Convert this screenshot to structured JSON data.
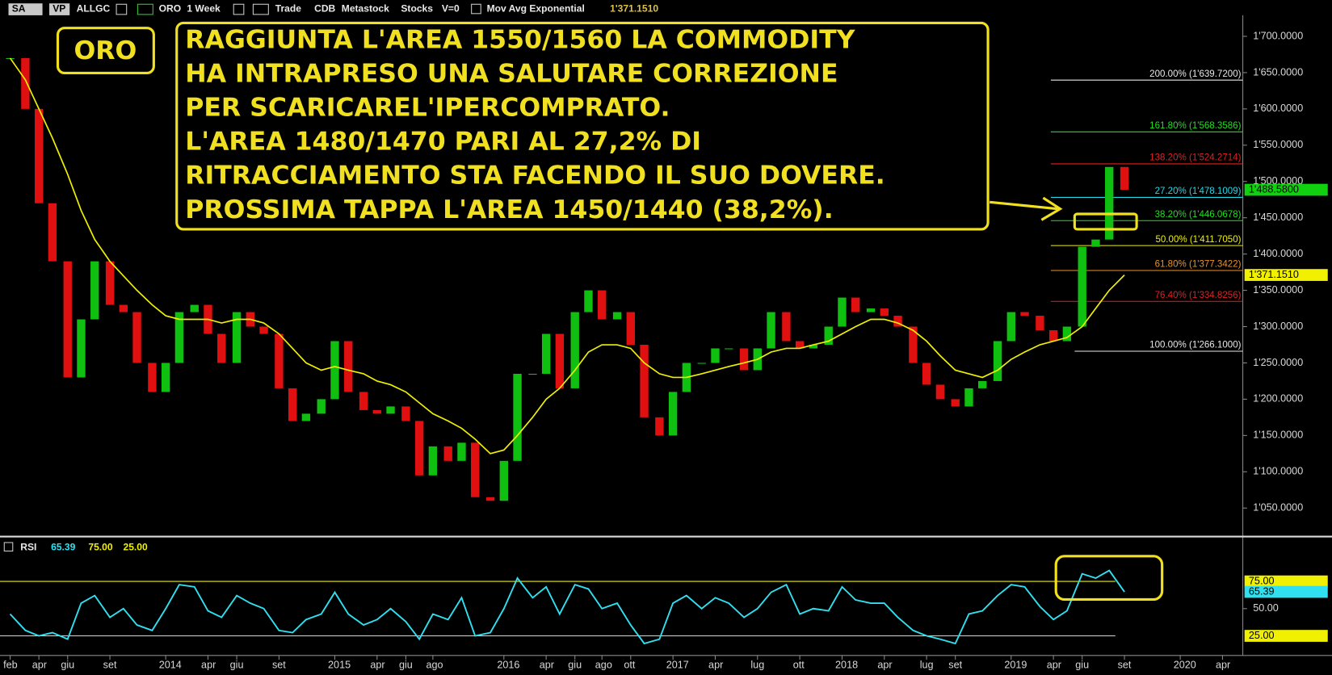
{
  "toolbar": {
    "buttons": [
      "SA",
      "VP"
    ],
    "symbol": "ALLGC",
    "name": "ORO",
    "period": "1 Week",
    "mode": "Trade",
    "source": "CDB",
    "format": "Metastock",
    "market": "Stocks",
    "volume": "V=0"
  },
  "chart_data": [
    {
      "type": "candlestick",
      "title": "ORO",
      "annotation": [
        "RAGGIUNTA L'AREA 1550/1560 LA COMMODITY",
        "HA INTRAPRESO UNA SALUTARE CORREZIONE",
        "PER SCARICAREL'IPERCOMPRATO.",
        "L'AREA 1480/1470 PARI AL 27,2% DI",
        "RITRACCIAMENTO STA FACENDO IL SUO DOVERE.",
        "PROSSIMA TAPPA L'AREA 1450/1440 (38,2%)."
      ],
      "x": [
        2013.08,
        2013.17,
        2013.25,
        2013.33,
        2013.42,
        2013.5,
        2013.58,
        2013.67,
        2013.75,
        2013.83,
        2013.92,
        2014,
        2014.08,
        2014.17,
        2014.25,
        2014.33,
        2014.42,
        2014.5,
        2014.58,
        2014.67,
        2014.75,
        2014.83,
        2014.92,
        2015,
        2015.08,
        2015.17,
        2015.25,
        2015.33,
        2015.42,
        2015.5,
        2015.58,
        2015.67,
        2015.75,
        2015.83,
        2015.92,
        2016,
        2016.08,
        2016.17,
        2016.25,
        2016.33,
        2016.42,
        2016.5,
        2016.58,
        2016.67,
        2016.75,
        2016.83,
        2016.92,
        2017,
        2017.08,
        2017.17,
        2017.25,
        2017.33,
        2017.42,
        2017.5,
        2017.58,
        2017.67,
        2017.75,
        2017.83,
        2017.92,
        2018,
        2018.08,
        2018.17,
        2018.25,
        2018.33,
        2018.42,
        2018.5,
        2018.58,
        2018.67,
        2018.75,
        2018.83,
        2018.92,
        2019,
        2019.08,
        2019.17,
        2019.25,
        2019.33,
        2019.42,
        2019.5,
        2019.58,
        2019.67
      ],
      "values": [
        1670,
        1600,
        1470,
        1390,
        1230,
        1310,
        1390,
        1330,
        1320,
        1250,
        1210,
        1250,
        1320,
        1330,
        1290,
        1250,
        1320,
        1300,
        1290,
        1215,
        1170,
        1180,
        1200,
        1280,
        1210,
        1185,
        1180,
        1190,
        1170,
        1095,
        1135,
        1115,
        1140,
        1065,
        1060,
        1115,
        1235,
        1235,
        1290,
        1215,
        1320,
        1350,
        1310,
        1320,
        1275,
        1175,
        1150,
        1210,
        1250,
        1250,
        1270,
        1270,
        1240,
        1270,
        1320,
        1280,
        1270,
        1275,
        1300,
        1340,
        1320,
        1325,
        1315,
        1300,
        1250,
        1220,
        1200,
        1190,
        1215,
        1225,
        1280,
        1320,
        1315,
        1295,
        1280,
        1300,
        1410,
        1420,
        1520,
        1488.58
      ],
      "up_color": "#10c010",
      "down_color": "#e01010",
      "price_tag": {
        "value": 1488.58,
        "label": "1'488.5800",
        "color": "#10d010"
      },
      "moving_average": {
        "name": "Mov Avg Exponential",
        "color": "#f0f000",
        "values": [
          1670,
          1640,
          1600,
          1560,
          1510,
          1460,
          1420,
          1390,
          1370,
          1350,
          1330,
          1315,
          1310,
          1310,
          1310,
          1305,
          1310,
          1310,
          1305,
          1290,
          1270,
          1250,
          1240,
          1245,
          1240,
          1235,
          1225,
          1220,
          1210,
          1195,
          1180,
          1170,
          1160,
          1145,
          1125,
          1130,
          1150,
          1175,
          1200,
          1215,
          1240,
          1265,
          1275,
          1275,
          1270,
          1250,
          1235,
          1230,
          1230,
          1235,
          1240,
          1245,
          1250,
          1255,
          1265,
          1270,
          1270,
          1275,
          1280,
          1290,
          1300,
          1310,
          1310,
          1305,
          1295,
          1280,
          1260,
          1240,
          1235,
          1230,
          1240,
          1255,
          1265,
          1275,
          1280,
          1285,
          1300,
          1325,
          1350,
          1371.151
        ],
        "tag": {
          "value": 1371.151,
          "label": "1'371.1510",
          "color": "#f0f000"
        }
      },
      "fib_levels": [
        {
          "label": "200.00% (1'639.7200)",
          "value": 1639.72,
          "color": "#e8e8e8"
        },
        {
          "label": "161.80% (1'568.3586)",
          "value": 1568.3586,
          "color": "#20e020"
        },
        {
          "label": "138.20% (1'524.2714)",
          "value": 1524.2714,
          "color": "#e02020"
        },
        {
          "label": "27.20% (1'478.1009)",
          "value": 1478.1009,
          "color": "#20d8e8"
        },
        {
          "label": "38.20% (1'446.0678)",
          "value": 1446.0678,
          "color": "#20e020"
        },
        {
          "label": "50.00% (1'411.7050)",
          "value": 1411.705,
          "color": "#f0f000"
        },
        {
          "label": "61.80% (1'377.3422)",
          "value": 1377.3422,
          "color": "#f09020"
        },
        {
          "label": "76.40% (1'334.8256)",
          "value": 1334.8256,
          "color": "#e02020"
        },
        {
          "label": "100.00% (1'266.1000)",
          "value": 1266.1,
          "color": "#e8e8e8"
        }
      ],
      "xlim": [
        2013.02,
        2020.37
      ],
      "ylim": [
        1013,
        1729
      ],
      "yticks": [
        {
          "value": 1050,
          "label": "1'050.0000"
        },
        {
          "value": 1100,
          "label": "1'100.0000"
        },
        {
          "value": 1150,
          "label": "1'150.0000"
        },
        {
          "value": 1200,
          "label": "1'200.0000"
        },
        {
          "value": 1250,
          "label": "1'250.0000"
        },
        {
          "value": 1300,
          "label": "1'300.0000"
        },
        {
          "value": 1350,
          "label": "1'350.0000"
        },
        {
          "value": 1400,
          "label": "1'400.0000"
        },
        {
          "value": 1450,
          "label": "1'450.0000"
        },
        {
          "value": 1500,
          "label": "1'500.0000"
        },
        {
          "value": 1550,
          "label": "1'550.0000"
        },
        {
          "value": 1600,
          "label": "1'600.0000"
        },
        {
          "value": 1650,
          "label": "1'650.0000"
        },
        {
          "value": 1700,
          "label": "1'700.0000"
        }
      ],
      "xticks": [
        {
          "value": 2013.08,
          "label": "feb"
        },
        {
          "value": 2013.25,
          "label": "apr"
        },
        {
          "value": 2013.42,
          "label": "giu"
        },
        {
          "value": 2013.67,
          "label": "set"
        },
        {
          "value": 2014,
          "label": "2014"
        },
        {
          "value": 2014.25,
          "label": "apr"
        },
        {
          "value": 2014.42,
          "label": "giu"
        },
        {
          "value": 2014.67,
          "label": "set"
        },
        {
          "value": 2015,
          "label": "2015"
        },
        {
          "value": 2015.25,
          "label": "apr"
        },
        {
          "value": 2015.42,
          "label": "giu"
        },
        {
          "value": 2015.58,
          "label": "ago"
        },
        {
          "value": 2016,
          "label": "2016"
        },
        {
          "value": 2016.25,
          "label": "apr"
        },
        {
          "value": 2016.42,
          "label": "giu"
        },
        {
          "value": 2016.58,
          "label": "ago"
        },
        {
          "value": 2016.75,
          "label": "ott"
        },
        {
          "value": 2017,
          "label": "2017"
        },
        {
          "value": 2017.25,
          "label": "apr"
        },
        {
          "value": 2017.5,
          "label": "lug"
        },
        {
          "value": 2017.75,
          "label": "ott"
        },
        {
          "value": 2018,
          "label": "2018"
        },
        {
          "value": 2018.25,
          "label": "apr"
        },
        {
          "value": 2018.5,
          "label": "lug"
        },
        {
          "value": 2018.67,
          "label": "set"
        },
        {
          "value": 2019,
          "label": "2019"
        },
        {
          "value": 2019.25,
          "label": "apr"
        },
        {
          "value": 2019.42,
          "label": "giu"
        },
        {
          "value": 2019.67,
          "label": "set"
        },
        {
          "value": 2020,
          "label": "2020"
        },
        {
          "value": 2020.25,
          "label": "apr"
        }
      ]
    },
    {
      "type": "line",
      "title": "RSI",
      "color": "#30e0f0",
      "x": [
        2013.08,
        2013.17,
        2013.25,
        2013.33,
        2013.42,
        2013.5,
        2013.58,
        2013.67,
        2013.75,
        2013.83,
        2013.92,
        2014,
        2014.08,
        2014.17,
        2014.25,
        2014.33,
        2014.42,
        2014.5,
        2014.58,
        2014.67,
        2014.75,
        2014.83,
        2014.92,
        2015,
        2015.08,
        2015.17,
        2015.25,
        2015.33,
        2015.42,
        2015.5,
        2015.58,
        2015.67,
        2015.75,
        2015.83,
        2015.92,
        2016,
        2016.08,
        2016.17,
        2016.25,
        2016.33,
        2016.42,
        2016.5,
        2016.58,
        2016.67,
        2016.75,
        2016.83,
        2016.92,
        2017,
        2017.08,
        2017.17,
        2017.25,
        2017.33,
        2017.42,
        2017.5,
        2017.58,
        2017.67,
        2017.75,
        2017.83,
        2017.92,
        2018,
        2018.08,
        2018.17,
        2018.25,
        2018.33,
        2018.42,
        2018.5,
        2018.58,
        2018.67,
        2018.75,
        2018.83,
        2018.92,
        2019,
        2019.08,
        2019.17,
        2019.25,
        2019.33,
        2019.42,
        2019.5,
        2019.58,
        2019.67
      ],
      "values": [
        45,
        30,
        25,
        28,
        22,
        55,
        62,
        42,
        50,
        35,
        30,
        50,
        72,
        70,
        48,
        42,
        62,
        55,
        50,
        30,
        28,
        40,
        45,
        65,
        45,
        35,
        40,
        50,
        38,
        22,
        45,
        40,
        60,
        25,
        28,
        50,
        78,
        60,
        70,
        45,
        72,
        68,
        50,
        55,
        35,
        18,
        22,
        55,
        62,
        50,
        60,
        55,
        42,
        50,
        65,
        72,
        45,
        50,
        48,
        70,
        58,
        55,
        55,
        42,
        30,
        25,
        22,
        18,
        45,
        48,
        62,
        72,
        70,
        52,
        40,
        48,
        82,
        78,
        85,
        65.39
      ],
      "tag": {
        "value": 65.39,
        "label": "65.39"
      },
      "levels": [
        {
          "value": 75,
          "label": "75.00"
        },
        {
          "value": 25,
          "label": "25.00"
        }
      ],
      "level_color": "#f0f000",
      "xlim": [
        2013.02,
        2020.37
      ],
      "ylim": [
        7,
        113
      ],
      "yticks": [
        {
          "value": 50,
          "label": "50.00"
        }
      ]
    }
  ]
}
